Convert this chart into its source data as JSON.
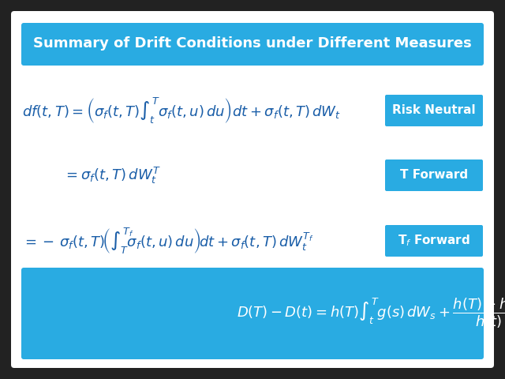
{
  "title": "Summary of Drift Conditions under Different Measures",
  "title_color": "#FFFFFF",
  "title_bg_color": "#29ABE2",
  "background_color": "#FFFFFF",
  "outer_bg_color": "#222222",
  "label_bg_color": "#29ABE2",
  "label_text_color": "#FFFFFF",
  "eq1": "df(t,T) = \\left( \\sigma_f(t,T)\\int_t^{T} \\sigma_f(t,u)\\,du \\right) dt + \\sigma_f(t,T)\\,dW_t",
  "eq2": "= \\sigma_f(t,T)\\,dW_t^{T}",
  "eq3": "= -\\,\\sigma_f(t,T)\\!\\left( \\int_T^{T_f}\\!\\! \\sigma_f(t,u)\\,du \\right)\\! dt + \\sigma_f(t,T)\\,dW_t^{T_f}",
  "eq4": "D(T) - D(t) = h(T)\\int_t^{T} g(s)\\,dW_s + \\dfrac{h(T)-h(t)}{h(t)}D(t)",
  "label1": "Risk Neutral",
  "label2": "T Forward",
  "label3": "T$_f$ Forward",
  "eq_color": "#1A5EA8",
  "eq4_color": "#FFFFFF",
  "fontsize_eq": 13,
  "fontsize_title": 13,
  "fontsize_label": 11
}
